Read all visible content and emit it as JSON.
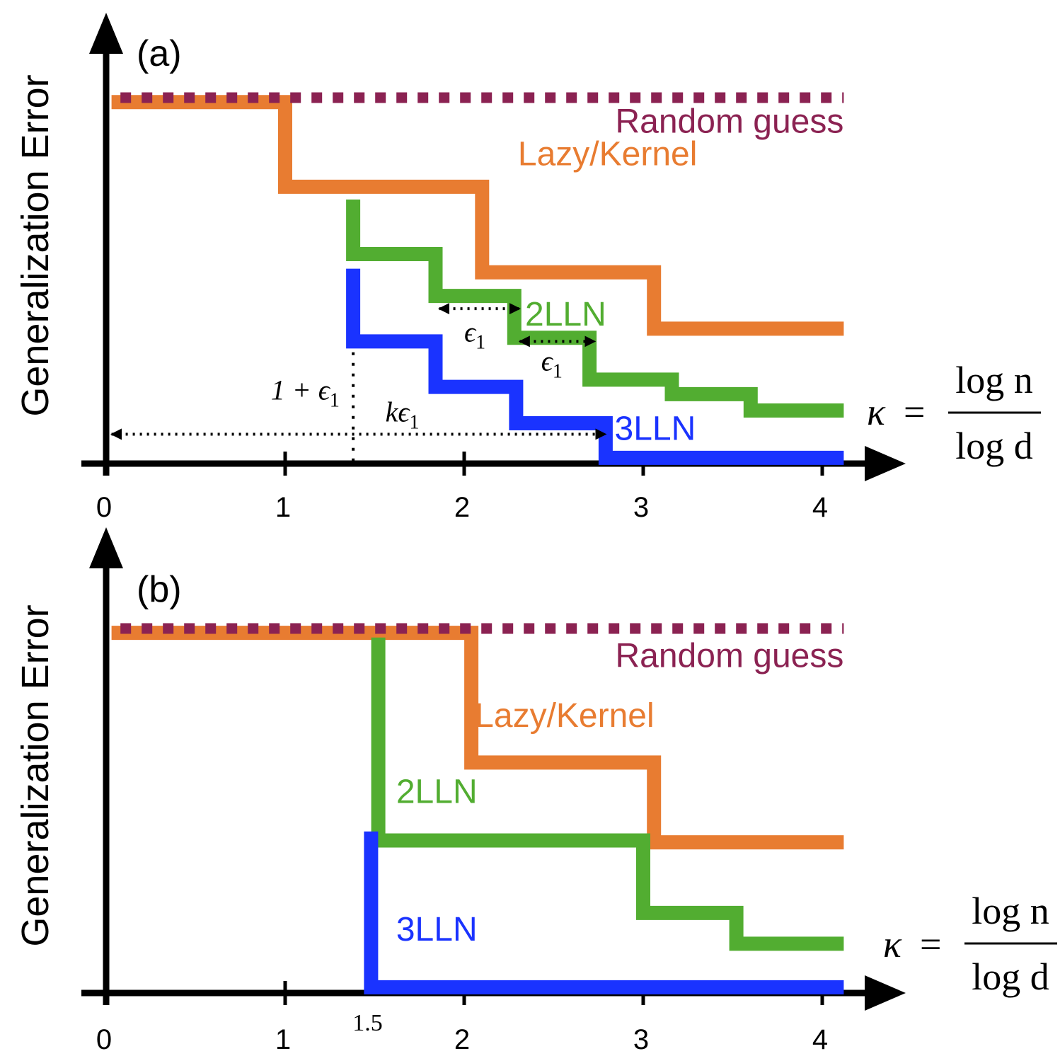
{
  "chart_data": [
    {
      "type": "line",
      "panel_label": "(a)",
      "ylabel": "Generalization Error",
      "xlabel": {
        "symbol": "κ",
        "equals": "=",
        "numerator": "log n",
        "denominator": "log d"
      },
      "xticks": [
        "0",
        "1",
        "2",
        "3",
        "4"
      ],
      "xlim": [
        0,
        4.4
      ],
      "ylim": [
        0,
        1
      ],
      "colors": {
        "random": "#8b2252",
        "lazy": "#e87c31",
        "twolln": "#52ad31",
        "threelln": "#1a33ff"
      },
      "series": [
        {
          "key": "random",
          "name": "Random guess",
          "style": "dotted",
          "x": [
            0.08,
            4.12
          ],
          "y": [
            1.0,
            1.0
          ],
          "label_at": [
            4.12,
            0.935
          ]
        },
        {
          "key": "lazy",
          "name": "Lazy/Kernel",
          "x": [
            0.03,
            1.0,
            1.0,
            2.1,
            2.1,
            3.06,
            3.06,
            4.12
          ],
          "y": [
            0.988,
            0.988,
            0.755,
            0.755,
            0.52,
            0.52,
            0.365,
            0.365
          ],
          "label_at": [
            2.3,
            0.845
          ]
        },
        {
          "key": "twolln",
          "name": "2LLN",
          "x": [
            1.38,
            1.38,
            1.84,
            1.84,
            2.28,
            2.28,
            2.7,
            2.7,
            3.16,
            3.16,
            3.6,
            3.6,
            4.12
          ],
          "y": [
            0.72,
            0.57,
            0.57,
            0.455,
            0.455,
            0.34,
            0.34,
            0.225,
            0.225,
            0.185,
            0.185,
            0.14,
            0.14
          ],
          "label_at": [
            2.34,
            0.405
          ]
        },
        {
          "key": "threelln",
          "name": "3LLN",
          "x": [
            1.38,
            1.38,
            1.84,
            1.84,
            2.29,
            2.29,
            2.79,
            2.79,
            4.12
          ],
          "y": [
            0.53,
            0.33,
            0.33,
            0.205,
            0.205,
            0.105,
            0.105,
            0.01,
            0.01
          ],
          "label_at": [
            2.84,
            0.09
          ]
        }
      ],
      "annotations": [
        {
          "kind": "arrow-double",
          "x": [
            1.86,
            2.31
          ],
          "y": 0.42,
          "label": "ϵ",
          "sub": "1",
          "label_at": [
            2.0,
            0.33
          ]
        },
        {
          "kind": "arrow-double",
          "x": [
            2.31,
            2.73
          ],
          "y": 0.33,
          "label": "ϵ",
          "sub": "1",
          "label_at": [
            2.43,
            0.25
          ]
        },
        {
          "kind": "arrow-double",
          "x": [
            0.03,
            2.79
          ],
          "y": 0.075,
          "label": "kϵ",
          "sub": "1",
          "label_at": [
            1.56,
            0.11
          ]
        },
        {
          "kind": "vline",
          "x": 1.38,
          "y": [
            0.3,
            0.0
          ],
          "label": "1 + ϵ",
          "sub": "1",
          "label_at": [
            0.92,
            0.17
          ]
        }
      ]
    },
    {
      "type": "line",
      "panel_label": "(b)",
      "ylabel": "Generalization Error",
      "xlabel": {
        "symbol": "κ",
        "equals": "=",
        "numerator": "log n",
        "denominator": "log d"
      },
      "xticks": [
        "0",
        "1",
        "2",
        "3",
        "4"
      ],
      "extra_xticks": [
        {
          "x": 1.5,
          "label": "1.5"
        }
      ],
      "xlim": [
        0,
        4.4
      ],
      "ylim": [
        0,
        1
      ],
      "colors": {
        "random": "#8b2252",
        "lazy": "#e87c31",
        "twolln": "#52ad31",
        "threelln": "#1a33ff"
      },
      "series": [
        {
          "key": "random",
          "name": "Random guess",
          "style": "dotted",
          "x": [
            0.08,
            4.12
          ],
          "y": [
            1.0,
            1.0
          ],
          "label_at": [
            4.12,
            0.925
          ]
        },
        {
          "key": "lazy",
          "name": "Lazy/Kernel",
          "x": [
            0.03,
            2.04,
            2.04,
            3.06,
            3.06,
            4.12
          ],
          "y": [
            0.988,
            0.988,
            0.63,
            0.63,
            0.41,
            0.41
          ],
          "label_at": [
            2.06,
            0.76
          ]
        },
        {
          "key": "twolln",
          "name": "2LLN",
          "x": [
            1.52,
            1.52,
            3.0,
            3.0,
            3.52,
            3.52,
            4.12
          ],
          "y": [
            0.975,
            0.415,
            0.415,
            0.215,
            0.215,
            0.13,
            0.13
          ],
          "label_at": [
            1.62,
            0.55
          ]
        },
        {
          "key": "threelln",
          "name": "3LLN",
          "x": [
            1.48,
            1.48,
            4.12
          ],
          "y": [
            0.44,
            0.01,
            0.01
          ],
          "label_at": [
            1.62,
            0.17
          ]
        }
      ],
      "annotations": []
    }
  ]
}
